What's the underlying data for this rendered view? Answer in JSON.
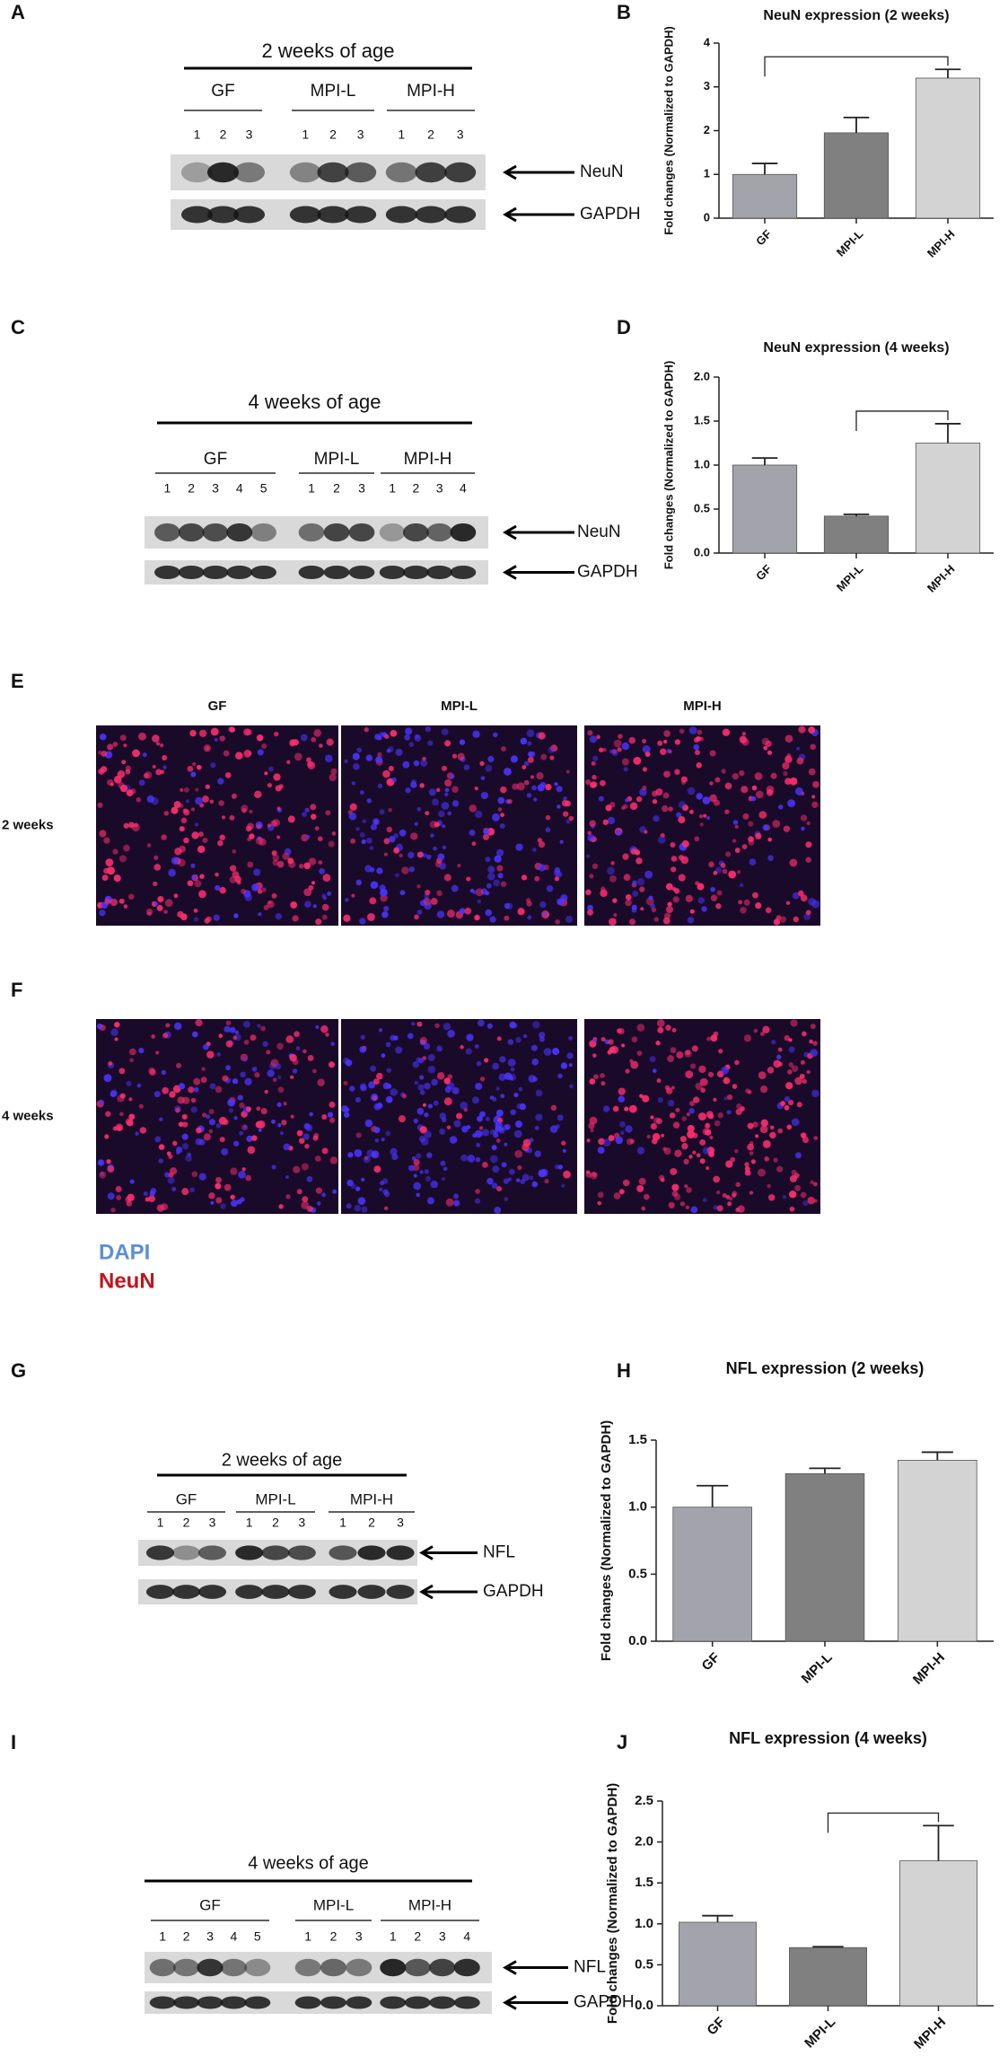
{
  "chart_data": [
    {
      "panel": "B",
      "type": "bar",
      "title": "NeuN expression (2 weeks)",
      "y_label": "Fold changes (Normalized to GAPDH)",
      "categories": [
        "GF",
        "MPI-L",
        "MPI-H"
      ],
      "values": [
        1.0,
        1.95,
        3.2
      ],
      "errors": [
        0.25,
        0.35,
        0.2
      ],
      "colors": [
        "#a3a3ab",
        "#808080",
        "#d3d3d3"
      ],
      "ylim": [
        0,
        4
      ],
      "yticks": [
        0,
        1,
        2,
        3,
        4
      ],
      "brackets": [
        [
          0,
          2
        ]
      ]
    },
    {
      "panel": "D",
      "type": "bar",
      "title": "NeuN expression (4 weeks)",
      "y_label": "Fold changes (Normalized to GAPDH)",
      "categories": [
        "GF",
        "MPI-L",
        "MPI-H"
      ],
      "values": [
        1.0,
        0.42,
        1.25
      ],
      "errors": [
        0.08,
        0.02,
        0.22
      ],
      "colors": [
        "#a3a3ab",
        "#808080",
        "#d3d3d3"
      ],
      "ylim": [
        0,
        2
      ],
      "yticks": [
        {
          "value": 0,
          "label": "0.0"
        },
        {
          "value": 0.5,
          "label": "0.5"
        },
        {
          "value": 1,
          "label": "1.0"
        },
        {
          "value": 1.5,
          "label": "1.5"
        },
        {
          "value": 2,
          "label": "2.0"
        }
      ],
      "brackets": [
        [
          1,
          2
        ]
      ]
    },
    {
      "panel": "H",
      "type": "bar",
      "title": "NFL expression (2 weeks)",
      "y_label": "Fold changes (Normalized to GAPDH)",
      "categories": [
        "GF",
        "MPI-L",
        "MPI-H"
      ],
      "values": [
        1.0,
        1.25,
        1.35
      ],
      "errors": [
        0.16,
        0.04,
        0.06
      ],
      "colors": [
        "#a3a3ab",
        "#808080",
        "#d3d3d3"
      ],
      "ylim": [
        0,
        1.5
      ],
      "yticks": [
        {
          "value": 0,
          "label": "0.0"
        },
        {
          "value": 0.5,
          "label": "0.5"
        },
        {
          "value": 1,
          "label": "1.0"
        },
        {
          "value": 1.5,
          "label": "1.5"
        }
      ],
      "brackets": []
    },
    {
      "panel": "J",
      "type": "bar",
      "title": "NFL expression (4 weeks)",
      "y_label": "Fold changes (Normalized to GAPDH)",
      "categories": [
        "GF",
        "MPI-L",
        "MPI-H"
      ],
      "values": [
        1.02,
        0.71,
        1.77
      ],
      "errors": [
        0.08,
        0.01,
        0.43
      ],
      "colors": [
        "#a3a3ab",
        "#808080",
        "#d3d3d3"
      ],
      "ylim": [
        0,
        2.5
      ],
      "yticks": [
        {
          "value": 0,
          "label": "0.0"
        },
        {
          "value": 0.5,
          "label": "0.5"
        },
        {
          "value": 1,
          "label": "1.0"
        },
        {
          "value": 1.5,
          "label": "1.5"
        },
        {
          "value": 2,
          "label": "2.0"
        },
        {
          "value": 2.5,
          "label": "2.5"
        }
      ],
      "brackets": [
        [
          1,
          2
        ]
      ]
    }
  ],
  "blots": [
    {
      "panel": "A",
      "title": "2 weeks of age",
      "groups": [
        {
          "name": "GF",
          "lanes": [
            "1",
            "2",
            "3"
          ]
        },
        {
          "name": "MPI-L",
          "lanes": [
            "1",
            "2",
            "3"
          ]
        },
        {
          "name": "MPI-H",
          "lanes": [
            "1",
            "2",
            "3"
          ]
        }
      ],
      "bands": [
        "NeuN",
        "GAPDH"
      ]
    },
    {
      "panel": "C",
      "title": "4 weeks of age",
      "groups": [
        {
          "name": "GF",
          "lanes": [
            "1",
            "2",
            "3",
            "4",
            "5"
          ]
        },
        {
          "name": "MPI-L",
          "lanes": [
            "1",
            "2",
            "3"
          ]
        },
        {
          "name": "MPI-H",
          "lanes": [
            "1",
            "2",
            "3",
            "4"
          ]
        }
      ],
      "bands": [
        "NeuN",
        "GAPDH"
      ]
    },
    {
      "panel": "G",
      "title": "2 weeks of age",
      "groups": [
        {
          "name": "GF",
          "lanes": [
            "1",
            "2",
            "3"
          ]
        },
        {
          "name": "MPI-L",
          "lanes": [
            "1",
            "2",
            "3"
          ]
        },
        {
          "name": "MPI-H",
          "lanes": [
            "1",
            "2",
            "3"
          ]
        }
      ],
      "bands": [
        "NFL",
        "GAPDH"
      ]
    },
    {
      "panel": "I",
      "title": "4 weeks of age",
      "groups": [
        {
          "name": "GF",
          "lanes": [
            "1",
            "2",
            "3",
            "4",
            "5"
          ]
        },
        {
          "name": "MPI-L",
          "lanes": [
            "1",
            "2",
            "3"
          ]
        },
        {
          "name": "MPI-H",
          "lanes": [
            "1",
            "2",
            "3",
            "4"
          ]
        }
      ],
      "bands": [
        "NFL",
        "GAPDH"
      ]
    }
  ],
  "micrographs": {
    "columns": [
      "GF",
      "MPI-L",
      "MPI-H"
    ],
    "rows": [
      {
        "panel": "E",
        "label": "2 weeks"
      },
      {
        "panel": "F",
        "label": "4 weeks"
      }
    ],
    "legend": [
      "DAPI",
      "NeuN"
    ]
  }
}
